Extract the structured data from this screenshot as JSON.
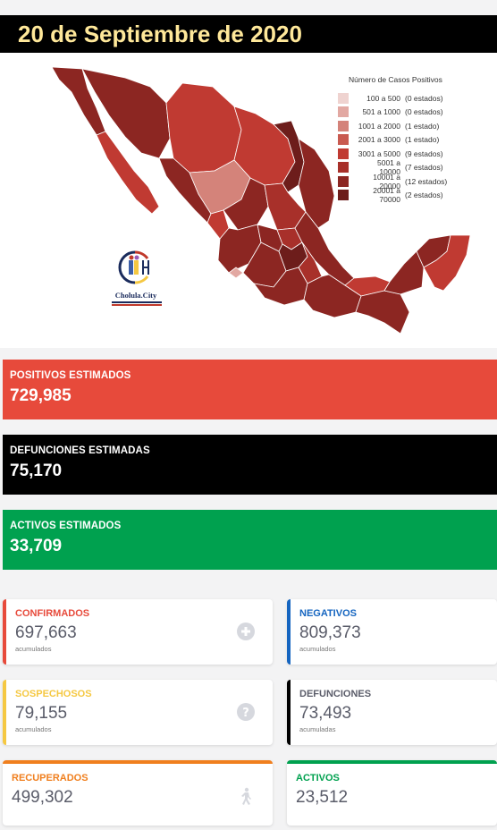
{
  "date_title": "20 de Septiembre de 2020",
  "map": {
    "legend_title": "Número de Casos Positivos",
    "legend": [
      {
        "range": "100 a    500",
        "count": "(0 estados)",
        "color": "#efd3d0"
      },
      {
        "range": "501 a   1000",
        "count": "(0 estados)",
        "color": "#e2a8a2"
      },
      {
        "range": "1001 a   2000",
        "count": "(1 estado)",
        "color": "#d4837a"
      },
      {
        "range": "2001 a   3000",
        "count": "(1 estado)",
        "color": "#c95a50"
      },
      {
        "range": "3001 a   5000",
        "count": "(9 estados)",
        "color": "#c03a32"
      },
      {
        "range": "5001 a 10000",
        "count": "(7 estados)",
        "color": "#a8302a"
      },
      {
        "range": "10001 a 20000",
        "count": "(12 estados)",
        "color": "#8c2622"
      },
      {
        "range": "20001 a 70000",
        "count": "(2 estados)",
        "color": "#6d1d1b"
      }
    ],
    "logo_text": "Cholula.City"
  },
  "banners": {
    "positivos": {
      "label": "POSITIVOS ESTIMADOS",
      "value": "729,985"
    },
    "defunciones": {
      "label": "DEFUNCIONES ESTIMADAS",
      "value": "75,170"
    },
    "activos": {
      "label": "ACTIVOS ESTIMADOS",
      "value": "33,709"
    }
  },
  "cards": {
    "confirmados": {
      "label": "CONFIRMADOS",
      "value": "697,663",
      "sub": "acumulados",
      "icon": "plus-circle-icon",
      "color": "#e74a3b"
    },
    "negativos": {
      "label": "NEGATIVOS",
      "value": "809,373",
      "sub": "acumulados",
      "color": "#1565c0"
    },
    "sospechosos": {
      "label": "SOSPECHOSOS",
      "value": "79,155",
      "sub": "acumulados",
      "icon": "question-circle-icon",
      "color": "#f5c842"
    },
    "defunciones": {
      "label": "DEFUNCIONES",
      "value": "73,493",
      "sub": "acumuladas",
      "color": "#5a5c69"
    },
    "recuperados": {
      "label": "RECUPERADOS",
      "value": "499,302",
      "icon": "walking-person-icon",
      "color": "#f07f1e"
    },
    "activos": {
      "label": "ACTIVOS",
      "value": "23,512",
      "color": "#00a14f"
    }
  }
}
